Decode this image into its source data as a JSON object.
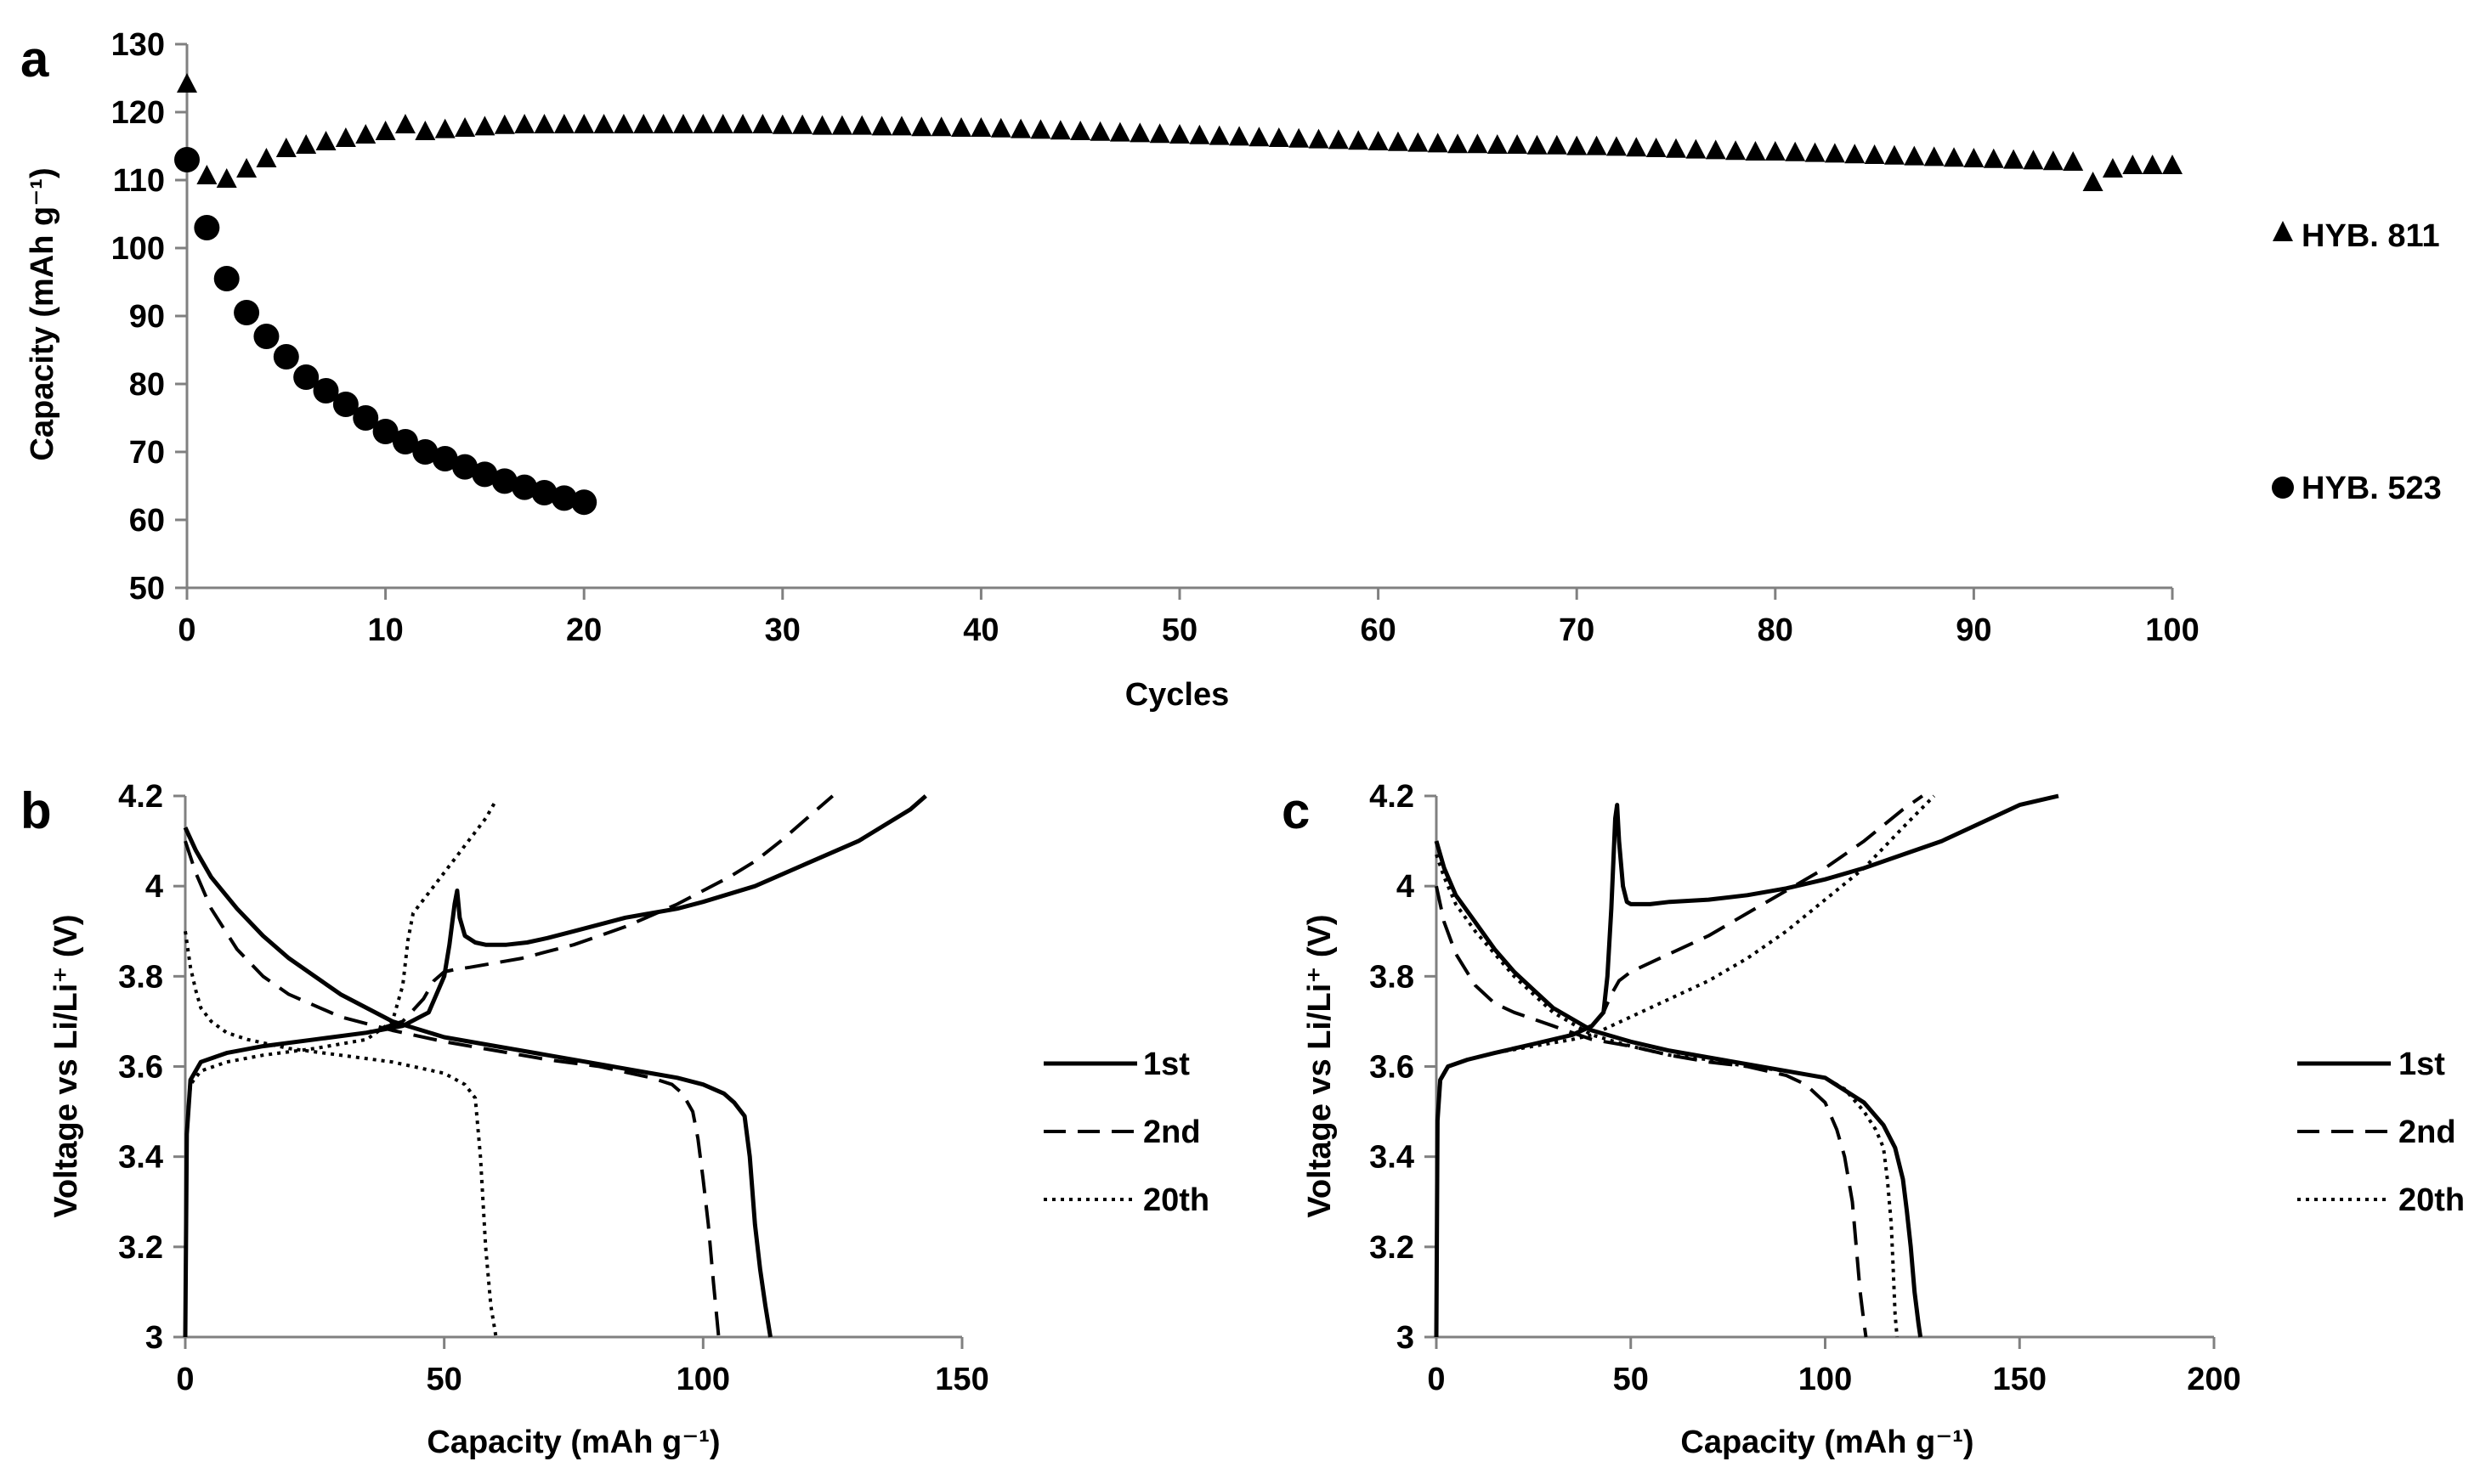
{
  "figure": {
    "background": "#ffffff",
    "ink": "#000000"
  },
  "chart_data": [
    {
      "panel": "a",
      "type": "scatter",
      "title": "",
      "xlabel": "Cycles",
      "ylabel": "Capacity (mAh g⁻¹)",
      "xlim": [
        0,
        100
      ],
      "ylim": [
        50,
        130
      ],
      "xticks": [
        0,
        10,
        20,
        30,
        40,
        50,
        60,
        70,
        80,
        90,
        100
      ],
      "yticks": [
        50,
        60,
        70,
        80,
        90,
        100,
        110,
        120,
        130
      ],
      "grid": false,
      "legend_position": "right",
      "series": [
        {
          "name": "HYB. 811",
          "marker": "triangle",
          "x": [
            0,
            1,
            2,
            3,
            4,
            5,
            6,
            7,
            8,
            9,
            10,
            11,
            12,
            13,
            14,
            15,
            16,
            17,
            18,
            19,
            20,
            21,
            22,
            23,
            24,
            25,
            26,
            27,
            28,
            29,
            30,
            31,
            32,
            33,
            34,
            35,
            36,
            37,
            38,
            39,
            40,
            41,
            42,
            43,
            44,
            45,
            46,
            47,
            48,
            49,
            50,
            51,
            52,
            53,
            54,
            55,
            56,
            57,
            58,
            59,
            60,
            61,
            62,
            63,
            64,
            65,
            66,
            67,
            68,
            69,
            70,
            71,
            72,
            73,
            74,
            75,
            76,
            77,
            78,
            79,
            80,
            81,
            82,
            83,
            84,
            85,
            86,
            87,
            88,
            89,
            90,
            91,
            92,
            93,
            94,
            95,
            96,
            97,
            98,
            99,
            100
          ],
          "y": [
            124,
            110.5,
            110,
            111.5,
            113,
            114.5,
            115,
            115.5,
            116,
            116.5,
            117,
            118,
            117,
            117.3,
            117.5,
            117.7,
            117.9,
            118,
            118,
            118,
            118,
            118,
            118,
            118,
            118,
            118,
            118,
            118,
            118,
            118,
            117.9,
            117.9,
            117.8,
            117.8,
            117.8,
            117.7,
            117.7,
            117.6,
            117.6,
            117.5,
            117.5,
            117.4,
            117.3,
            117.2,
            117.1,
            117,
            116.9,
            116.8,
            116.7,
            116.6,
            116.5,
            116.4,
            116.3,
            116.2,
            116.1,
            116,
            115.9,
            115.8,
            115.7,
            115.6,
            115.5,
            115.4,
            115.3,
            115.2,
            115.1,
            115.1,
            115,
            115,
            114.9,
            114.9,
            114.8,
            114.8,
            114.7,
            114.6,
            114.5,
            114.4,
            114.3,
            114.2,
            114.1,
            114,
            114,
            113.9,
            113.8,
            113.7,
            113.6,
            113.5,
            113.4,
            113.3,
            113.2,
            113.1,
            113,
            112.9,
            112.8,
            112.7,
            112.6,
            112.5,
            109.5,
            111.5,
            112,
            112,
            112
          ]
        },
        {
          "name": "HYB. 523",
          "marker": "circle",
          "x": [
            0,
            1,
            2,
            3,
            4,
            5,
            6,
            7,
            8,
            9,
            10,
            11,
            12,
            13,
            14,
            15,
            16,
            17,
            18,
            19,
            20
          ],
          "y": [
            113,
            103,
            95.5,
            90.5,
            87,
            84,
            81,
            79,
            77,
            75,
            73,
            71.5,
            70,
            69,
            67.8,
            66.7,
            65.7,
            64.8,
            64,
            63.2,
            62.6
          ]
        }
      ]
    },
    {
      "panel": "b",
      "type": "line",
      "title": "",
      "xlabel": "Capacity (mAh g⁻¹)",
      "ylabel": "Voltage vs Li/Li⁺ (V)",
      "xlim": [
        0,
        150
      ],
      "ylim": [
        3,
        4.2
      ],
      "xticks": [
        0,
        50,
        100,
        150
      ],
      "yticks": [
        3,
        3.2,
        3.4,
        3.6,
        3.8,
        4,
        4.2
      ],
      "ytick_labels": [
        "3",
        "3.2",
        "3.4",
        "3.6",
        "3.8",
        "4",
        "4.2"
      ],
      "grid": false,
      "legend_position": "right",
      "series": [
        {
          "name": "1st",
          "style": "solid",
          "charge": {
            "x": [
              0,
              0.3,
              1,
              3,
              8,
              15,
              25,
              35,
              42,
              47,
              50,
              51,
              52,
              52.5,
              53,
              54,
              56,
              58,
              62,
              66,
              70,
              75,
              80,
              85,
              90,
              95,
              100,
              110,
              120,
              130,
              140,
              143
            ],
            "y": [
              3.0,
              3.45,
              3.57,
              3.61,
              3.63,
              3.645,
              3.66,
              3.675,
              3.69,
              3.72,
              3.8,
              3.87,
              3.96,
              3.99,
              3.93,
              3.89,
              3.875,
              3.87,
              3.87,
              3.875,
              3.885,
              3.9,
              3.915,
              3.93,
              3.94,
              3.95,
              3.965,
              4.0,
              4.05,
              4.1,
              4.17,
              4.2
            ]
          },
          "discharge": {
            "x": [
              0,
              2,
              5,
              10,
              15,
              20,
              25,
              30,
              40,
              50,
              60,
              70,
              80,
              90,
              95,
              100,
              104,
              106,
              108,
              109,
              110,
              111,
              112,
              113
            ],
            "y": [
              4.13,
              4.08,
              4.02,
              3.95,
              3.89,
              3.84,
              3.8,
              3.76,
              3.7,
              3.665,
              3.645,
              3.625,
              3.605,
              3.585,
              3.575,
              3.56,
              3.54,
              3.52,
              3.49,
              3.4,
              3.25,
              3.15,
              3.07,
              3.0
            ]
          }
        },
        {
          "name": "2nd",
          "style": "dashed",
          "charge": {
            "x": [
              0,
              0.3,
              1,
              3,
              8,
              15,
              25,
              35,
              42,
              46,
              48,
              50,
              52,
              55,
              60,
              65,
              70,
              75,
              80,
              85,
              90,
              95,
              100,
              105,
              110,
              115,
              120,
              125
            ],
            "y": [
              3.0,
              3.45,
              3.57,
              3.61,
              3.63,
              3.645,
              3.66,
              3.675,
              3.7,
              3.75,
              3.79,
              3.81,
              3.815,
              3.82,
              3.83,
              3.84,
              3.855,
              3.87,
              3.89,
              3.91,
              3.935,
              3.96,
              3.99,
              4.02,
              4.055,
              4.1,
              4.15,
              4.2
            ]
          },
          "discharge": {
            "x": [
              0,
              2,
              5,
              10,
              15,
              20,
              30,
              40,
              50,
              60,
              70,
              80,
              90,
              94,
              96,
              98,
              99,
              100,
              101,
              102,
              103
            ],
            "y": [
              4.1,
              4.03,
              3.95,
              3.86,
              3.8,
              3.76,
              3.71,
              3.68,
              3.655,
              3.635,
              3.615,
              3.6,
              3.575,
              3.56,
              3.54,
              3.5,
              3.44,
              3.35,
              3.25,
              3.12,
              3.0
            ]
          }
        },
        {
          "name": "20th",
          "style": "dotted",
          "charge": {
            "x": [
              0,
              0.3,
              1,
              3,
              8,
              15,
              25,
              35,
              40,
              42,
              43,
              44,
              46,
              48,
              50,
              52,
              54,
              56,
              58,
              60
            ],
            "y": [
              3.0,
              3.45,
              3.56,
              3.59,
              3.61,
              3.625,
              3.64,
              3.66,
              3.7,
              3.78,
              3.88,
              3.94,
              3.97,
              4.0,
              4.03,
              4.06,
              4.09,
              4.12,
              4.15,
              4.19
            ]
          },
          "discharge": {
            "x": [
              0,
              1,
              2,
              3,
              5,
              8,
              12,
              20,
              30,
              40,
              50,
              54,
              56,
              57,
              58,
              59,
              60
            ],
            "y": [
              3.9,
              3.82,
              3.77,
              3.73,
              3.7,
              3.675,
              3.66,
              3.64,
              3.625,
              3.61,
              3.585,
              3.56,
              3.53,
              3.4,
              3.2,
              3.07,
              3.0
            ]
          }
        }
      ]
    },
    {
      "panel": "c",
      "type": "line",
      "title": "",
      "xlabel": "Capacity (mAh g⁻¹)",
      "ylabel": "Voltage vs Li/Li⁺ (V)",
      "xlim": [
        0,
        200
      ],
      "ylim": [
        3,
        4.2
      ],
      "xticks": [
        0,
        50,
        100,
        150,
        200
      ],
      "yticks": [
        3,
        3.2,
        3.4,
        3.6,
        3.8,
        4,
        4.2
      ],
      "ytick_labels": [
        "3",
        "3.2",
        "3.4",
        "3.6",
        "3.8",
        "4",
        "4.2"
      ],
      "grid": false,
      "legend_position": "right",
      "series": [
        {
          "name": "1st",
          "style": "solid",
          "charge": {
            "x": [
              0,
              0.3,
              1,
              3,
              8,
              15,
              25,
              35,
              40,
              43,
              44,
              45,
              46,
              46.5,
              47,
              48,
              49,
              50,
              52,
              55,
              60,
              70,
              80,
              90,
              100,
              110,
              120,
              130,
              140,
              150,
              160
            ],
            "y": [
              3.0,
              3.48,
              3.57,
              3.6,
              3.615,
              3.63,
              3.65,
              3.67,
              3.69,
              3.72,
              3.8,
              3.95,
              4.15,
              4.18,
              4.1,
              4.0,
              3.965,
              3.96,
              3.96,
              3.96,
              3.965,
              3.97,
              3.98,
              3.995,
              4.015,
              4.04,
              4.07,
              4.1,
              4.14,
              4.18,
              4.2
            ]
          },
          "discharge": {
            "x": [
              0,
              2,
              5,
              10,
              15,
              20,
              25,
              30,
              40,
              50,
              60,
              70,
              80,
              90,
              100,
              110,
              115,
              118,
              120,
              121,
              122,
              123,
              124,
              124.5
            ],
            "y": [
              4.1,
              4.04,
              3.98,
              3.92,
              3.86,
              3.81,
              3.77,
              3.73,
              3.68,
              3.655,
              3.635,
              3.62,
              3.605,
              3.59,
              3.575,
              3.52,
              3.47,
              3.42,
              3.35,
              3.28,
              3.2,
              3.1,
              3.03,
              3.0
            ]
          }
        },
        {
          "name": "2nd",
          "style": "dashed",
          "charge": {
            "x": [
              0,
              0.3,
              1,
              3,
              8,
              15,
              25,
              35,
              40,
              43,
              45,
              47,
              50,
              55,
              60,
              70,
              80,
              90,
              100,
              110,
              120,
              125
            ],
            "y": [
              3.0,
              3.48,
              3.57,
              3.6,
              3.615,
              3.63,
              3.65,
              3.67,
              3.69,
              3.72,
              3.76,
              3.79,
              3.81,
              3.83,
              3.85,
              3.89,
              3.94,
              3.99,
              4.04,
              4.1,
              4.17,
              4.2
            ]
          },
          "discharge": {
            "x": [
              0,
              2,
              5,
              10,
              15,
              20,
              30,
              40,
              50,
              60,
              70,
              80,
              90,
              95,
              100,
              103,
              105,
              107,
              108,
              109,
              110,
              110.5
            ],
            "y": [
              4.0,
              3.92,
              3.85,
              3.78,
              3.74,
              3.72,
              3.69,
              3.66,
              3.645,
              3.625,
              3.61,
              3.6,
              3.58,
              3.56,
              3.52,
              3.46,
              3.4,
              3.3,
              3.2,
              3.1,
              3.03,
              3.0
            ]
          }
        },
        {
          "name": "20th",
          "style": "dotted",
          "charge": {
            "x": [
              0,
              0.3,
              1,
              3,
              8,
              15,
              25,
              35,
              40,
              45,
              50,
              55,
              60,
              70,
              80,
              90,
              100,
              110,
              120,
              128
            ],
            "y": [
              3.0,
              3.48,
              3.57,
              3.6,
              3.615,
              3.63,
              3.645,
              3.66,
              3.67,
              3.69,
              3.71,
              3.73,
              3.75,
              3.79,
              3.84,
              3.9,
              3.97,
              4.04,
              4.13,
              4.2
            ]
          },
          "discharge": {
            "x": [
              0,
              2,
              5,
              10,
              15,
              20,
              25,
              30,
              40,
              50,
              60,
              70,
              80,
              90,
              100,
              105,
              110,
              113,
              115,
              116,
              117,
              117.5,
              118,
              118.5
            ],
            "y": [
              4.07,
              4.02,
              3.96,
              3.9,
              3.85,
              3.8,
              3.76,
              3.72,
              3.67,
              3.645,
              3.625,
              3.615,
              3.6,
              3.59,
              3.575,
              3.55,
              3.5,
              3.46,
              3.42,
              3.35,
              3.25,
              3.15,
              3.05,
              3.0
            ]
          }
        }
      ]
    }
  ]
}
